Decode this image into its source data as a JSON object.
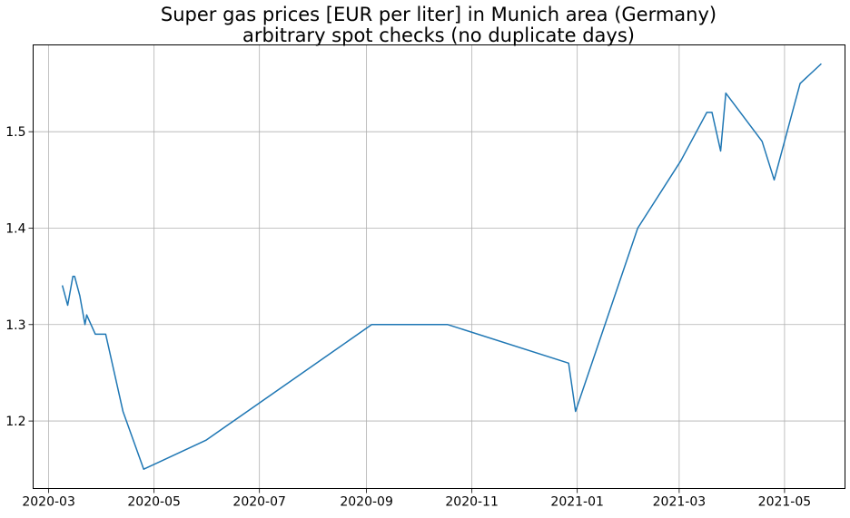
{
  "chart_data": {
    "type": "line",
    "title": "Super gas prices [EUR per liter] in Munich area (Germany)",
    "subtitle": "arbitrary spot checks (no duplicate days)",
    "xlabel": "",
    "ylabel": "",
    "x_type": "date",
    "xlim": [
      "2020-02-21",
      "2021-06-05"
    ],
    "ylim": [
      1.13,
      1.59
    ],
    "x_ticks": [
      "2020-03-01",
      "2020-05-01",
      "2020-07-01",
      "2020-09-01",
      "2020-11-01",
      "2021-01-01",
      "2021-03-01",
      "2021-05-01"
    ],
    "x_tick_labels": [
      "2020-03",
      "2020-05",
      "2020-07",
      "2020-09",
      "2020-11",
      "2021-01",
      "2021-03",
      "2021-05"
    ],
    "y_ticks": [
      1.2,
      1.3,
      1.4,
      1.5
    ],
    "y_tick_labels": [
      "1.2",
      "1.3",
      "1.4",
      "1.5"
    ],
    "grid": true,
    "legend": false,
    "series": [
      {
        "name": "Super",
        "color": "#1f77b4",
        "x": [
          "2020-03-09",
          "2020-03-12",
          "2020-03-15",
          "2020-03-16",
          "2020-03-19",
          "2020-03-22",
          "2020-03-23",
          "2020-03-28",
          "2020-04-03",
          "2020-04-13",
          "2020-04-25",
          "2020-05-31",
          "2020-09-04",
          "2020-10-18",
          "2020-12-27",
          "2020-12-31",
          "2021-02-05",
          "2021-03-02",
          "2021-03-17",
          "2021-03-20",
          "2021-03-25",
          "2021-03-28",
          "2021-04-18",
          "2021-04-25",
          "2021-05-10",
          "2021-05-22"
        ],
        "y": [
          1.34,
          1.32,
          1.35,
          1.35,
          1.33,
          1.3,
          1.31,
          1.29,
          1.29,
          1.21,
          1.15,
          1.18,
          1.3,
          1.3,
          1.26,
          1.21,
          1.4,
          1.47,
          1.52,
          1.52,
          1.48,
          1.54,
          1.49,
          1.45,
          1.55,
          1.57
        ]
      }
    ]
  }
}
